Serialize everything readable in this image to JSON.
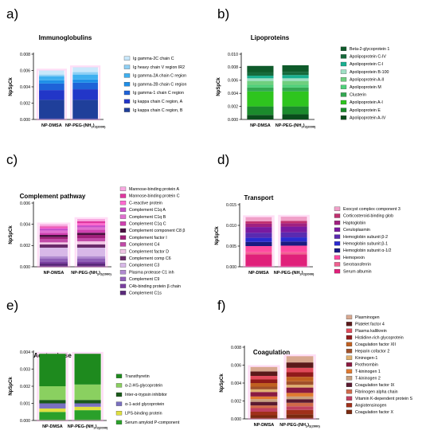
{
  "chart_data": [
    {
      "panel_label": "a)",
      "type": "bar",
      "stacked": true,
      "title": "Immunoglobulins",
      "ylabel": "NpSpCk",
      "ylim": [
        0,
        0.008
      ],
      "yticks": [
        "0.000",
        "0.002",
        "0.004",
        "0.006",
        "0.008"
      ],
      "categories": [
        "NP-DMSA",
        "NP-PEG-(NH2)2(2000)"
      ],
      "category_display": [
        {
          "main": "NP-DMSA",
          "sub": ""
        },
        {
          "main": "NP-PEG-(NH",
          "sub": "2",
          "main2": ")",
          "sub2": "2(2000)"
        }
      ],
      "legend_order": "top-to-bottom",
      "series": [
        {
          "name": "Ig kappa chain C region, B",
          "color": "#1f3f9a",
          "values": [
            0.0024,
            0.0024
          ]
        },
        {
          "name": "Ig kappa chain C region, A",
          "color": "#2236c8",
          "values": [
            0.0012,
            0.0013
          ]
        },
        {
          "name": "Ig gamma-1 chain C region",
          "color": "#1e62d8",
          "values": [
            0.0008,
            0.0008
          ]
        },
        {
          "name": "Ig gamma-2B chain C region",
          "color": "#1f8fe8",
          "values": [
            0.0004,
            0.0004
          ]
        },
        {
          "name": "Ig gamma-2A chain C region",
          "color": "#3fb0f0",
          "values": [
            0.0005,
            0.0006
          ]
        },
        {
          "name": "Ig heavy chain V region IR2",
          "color": "#8fd0f5",
          "values": [
            0.0002,
            0.0003
          ]
        },
        {
          "name": "Ig gamma-2C chain C",
          "color": "#c9e8fb",
          "values": [
            0.0005,
            0.0006
          ]
        }
      ]
    },
    {
      "panel_label": "b)",
      "type": "bar",
      "stacked": true,
      "title": "Lipoproteins",
      "ylabel": "NpSpCk",
      "ylim": [
        0,
        0.01
      ],
      "yticks": [
        "0.000",
        "0.002",
        "0.004",
        "0.006",
        "0.008",
        "0.010"
      ],
      "categories": [
        "NP-DMSA",
        "NP-PEG-(NH2)2(2000)"
      ],
      "category_display": [
        {
          "main": "NP-DMSA",
          "sub": ""
        },
        {
          "main": "NP-PEG-(NH",
          "sub": "2",
          "main2": ")",
          "sub2": "2(2000)"
        }
      ],
      "series": [
        {
          "name": "Apolipoprotein A-IV",
          "color": "#0a4d1c",
          "values": [
            0.0007,
            0.0008
          ]
        },
        {
          "name": "Apolipoprotein E",
          "color": "#1b8a2c",
          "values": [
            0.0013,
            0.0012
          ]
        },
        {
          "name": "Apolipoprotein A-I",
          "color": "#2ec51e",
          "values": [
            0.0023,
            0.0023
          ]
        },
        {
          "name": "Clusterin",
          "color": "#33a852",
          "values": [
            0.0006,
            0.0006
          ]
        },
        {
          "name": "Apolipoprotein M",
          "color": "#4fd07a",
          "values": [
            0.0004,
            0.0004
          ]
        },
        {
          "name": "Apolipoprotein A-II",
          "color": "#6fcf7f",
          "values": [
            0.0006,
            0.0006
          ]
        },
        {
          "name": "Apolipoprotein B-100",
          "color": "#9fe0c4",
          "values": [
            0.0004,
            0.0004
          ]
        },
        {
          "name": "Apolipoprotein C-I",
          "color": "#18b090",
          "values": [
            0.0004,
            0.0005
          ]
        },
        {
          "name": "Apolipoprotein C-IV",
          "color": "#166a3c",
          "values": [
            0.0005,
            0.0005
          ]
        },
        {
          "name": "Beta-2-glycoprotein 1",
          "color": "#0e5a2a",
          "values": [
            0.001,
            0.001
          ]
        }
      ]
    },
    {
      "panel_label": "c)",
      "type": "bar",
      "stacked": true,
      "title": "Complement pathway",
      "ylabel": "NpSpCk",
      "ylim": [
        0,
        0.006
      ],
      "yticks": [
        "0.000",
        "0.002",
        "0.004",
        "0.006"
      ],
      "categories": [
        "NP-DMSA",
        "NP-PEG-(NH2)2(2000)"
      ],
      "category_display": [
        {
          "main": "NP-DMSA",
          "sub": ""
        },
        {
          "main": "NP-PEG-(NH",
          "sub": "2",
          "main2": ")",
          "sub2": "2(2000)"
        }
      ],
      "series": [
        {
          "name": "Complement C1s",
          "color": "#5a2a7a",
          "values": [
            0.0003,
            0.0003
          ]
        },
        {
          "name": "C4b-binding protein  β chain",
          "color": "#7a3fa0",
          "values": [
            0.0002,
            0.0002
          ]
        },
        {
          "name": "Complement C9",
          "color": "#9060b8",
          "values": [
            0.0003,
            0.0003
          ]
        },
        {
          "name": "Plasma protease C1 inh",
          "color": "#b08ad0",
          "values": [
            0.0002,
            0.0002
          ]
        },
        {
          "name": "Complement C3",
          "color": "#d8b8e8",
          "values": [
            0.0008,
            0.0008
          ]
        },
        {
          "name": "Complement comp C6",
          "color": "#6a2a6a",
          "values": [
            0.0003,
            0.0003
          ]
        },
        {
          "name": "Complement factor D",
          "color": "#f0c4e4",
          "values": [
            0.0002,
            0.0003
          ]
        },
        {
          "name": "Complement C4",
          "color": "#c24aa8",
          "values": [
            0.0003,
            0.0003
          ]
        },
        {
          "name": "Complement factor I",
          "color": "#a0207a",
          "values": [
            0.0002,
            0.0003
          ]
        },
        {
          "name": "Complement component C8  β",
          "color": "#4a1040",
          "values": [
            0.0002,
            0.0002
          ]
        },
        {
          "name": "Complement C1q C",
          "color": "#d040b0",
          "values": [
            0.0002,
            0.0003
          ]
        },
        {
          "name": "Complement C1q B",
          "color": "#e070d0",
          "values": [
            0.0002,
            0.0002
          ]
        },
        {
          "name": "Complement C1q A",
          "color": "#c850c8",
          "values": [
            0.0002,
            0.0002
          ]
        },
        {
          "name": "C-reactive protein",
          "color": "#ff6ad0",
          "values": [
            0.0001,
            0.0002
          ]
        },
        {
          "name": "Mannose-binding protein C",
          "color": "#e038a0",
          "values": [
            0.0001,
            0.0002
          ]
        },
        {
          "name": "Mannose-binding protein A",
          "color": "#f8a8e0",
          "values": [
            0.0002,
            0.0002
          ]
        }
      ]
    },
    {
      "panel_label": "d)",
      "type": "bar",
      "stacked": true,
      "title": "Transport",
      "ylabel": "NpSpCk",
      "ylim": [
        0,
        0.015
      ],
      "yticks": [
        "0.000",
        "0.005",
        "0.010",
        "0.015"
      ],
      "categories": [
        "NP-DMSA",
        "NP-PEG-(NH2)2(2000)"
      ],
      "category_display": [
        {
          "main": "NP-DMSA",
          "sub": ""
        },
        {
          "main": "NP-PEG-(NH",
          "sub": "2",
          "main2": ")",
          "sub2": "2(2000)"
        }
      ],
      "series": [
        {
          "name": "Serum albumin",
          "color": "#e0207a",
          "values": [
            0.003,
            0.003
          ]
        },
        {
          "name": "Serotransferrin",
          "color": "#f06090",
          "values": [
            0.0005,
            0.0005
          ]
        },
        {
          "name": "Hemopexin",
          "color": "#ff4aa0",
          "values": [
            0.0015,
            0.0016
          ]
        },
        {
          "name": "Hemoglobin subunit  α-1/2",
          "color": "#1a1a80",
          "values": [
            0.001,
            0.001
          ]
        },
        {
          "name": "Hemoglobin subunit  β-1",
          "color": "#2a2ad0",
          "values": [
            0.001,
            0.001
          ]
        },
        {
          "name": "Hemoglobin subunit  β-2",
          "color": "#5a2ab0",
          "values": [
            0.0012,
            0.0012
          ]
        },
        {
          "name": "Ceruloplasmin",
          "color": "#7a1aa0",
          "values": [
            0.0014,
            0.0014
          ]
        },
        {
          "name": "Haptoglobin",
          "color": "#a02080",
          "values": [
            0.0008,
            0.0008
          ]
        },
        {
          "name": "Corticosteroid-binding glob",
          "color": "#c03070",
          "values": [
            0.0006,
            0.0006
          ]
        },
        {
          "name": "Exocyst complex component 3",
          "color": "#f0a0c8",
          "values": [
            0.001,
            0.001
          ]
        }
      ]
    },
    {
      "panel_label": "e)",
      "type": "bar",
      "stacked": true,
      "title": "Acute phase",
      "ylabel": "NpSpCk",
      "ylim": [
        0,
        0.004
      ],
      "yticks": [
        "0.000",
        "0.001",
        "0.002",
        "0.003",
        "0.004"
      ],
      "categories": [
        "NP-DMSA",
        "NP-PEG-(NH2)2(2000)"
      ],
      "category_display": [
        {
          "main": "NP-DMSA",
          "sub": ""
        },
        {
          "main": "NP-PEG-(NH",
          "sub": "2",
          "main2": ")",
          "sub2": "2(2000)"
        }
      ],
      "series": [
        {
          "name": "Serum amyloid P-component",
          "color": "#2aa02a",
          "values": [
            0.0005,
            0.0006
          ]
        },
        {
          "name": "LPS-binding protein",
          "color": "#e0e040",
          "values": [
            0.0002,
            0.0002
          ]
        },
        {
          "name": "α-1-acid glycoprotein",
          "color": "#7a70c0",
          "values": [
            0.0003,
            0.0002
          ]
        },
        {
          "name": "Inter-α-trypsin inhibitor",
          "color": "#1a5a1a",
          "values": [
            0.0002,
            0.0002
          ]
        },
        {
          "name": "α-2-HS-glycoprotein",
          "color": "#8ad060",
          "values": [
            0.0008,
            0.0009
          ]
        },
        {
          "name": "Transthyretin",
          "color": "#1e8a1e",
          "values": [
            0.0019,
            0.0018
          ]
        }
      ]
    },
    {
      "panel_label": "f)",
      "type": "bar",
      "stacked": true,
      "title": "Coagulation",
      "ylabel": "NpSpCk",
      "ylim": [
        0,
        0.008
      ],
      "yticks": [
        "0.000",
        "0.002",
        "0.004",
        "0.006",
        "0.008"
      ],
      "categories": [
        "NP-DMSA",
        "NP-PEG-(NH2)2(2000)"
      ],
      "category_display": [
        {
          "main": "NP-DMSA",
          "sub": ""
        },
        {
          "main": "NP-PEG-(NH",
          "sub": "2",
          "main2": ")",
          "sub2": "2(2000)"
        }
      ],
      "series": [
        {
          "name": "Coagulation factor X",
          "color": "#7a2a10",
          "values": [
            0.0004,
            0.0005
          ]
        },
        {
          "name": "Angiotensinogen",
          "color": "#a0301a",
          "values": [
            0.0004,
            0.0005
          ]
        },
        {
          "name": "Vitamin K-dependent protein S",
          "color": "#c04060",
          "values": [
            0.0004,
            0.0004
          ]
        },
        {
          "name": "Fibrinogen alpha chain",
          "color": "#d06a4a",
          "values": [
            0.0003,
            0.0004
          ]
        },
        {
          "name": "Coagulation factor IX",
          "color": "#5a1a30",
          "values": [
            0.0004,
            0.0004
          ]
        },
        {
          "name": "T-kininogen 2",
          "color": "#c8a080",
          "values": [
            0.0003,
            0.0003
          ]
        },
        {
          "name": "T-kininogen 1",
          "color": "#e07a30",
          "values": [
            0.0003,
            0.0004
          ]
        },
        {
          "name": "Prothrombin",
          "color": "#8a1a40",
          "values": [
            0.0005,
            0.0006
          ]
        },
        {
          "name": "Kininogen-1",
          "color": "#e0b070",
          "values": [
            0.0003,
            0.0003
          ]
        },
        {
          "name": "Heparin cofactor 2",
          "color": "#a0502a",
          "values": [
            0.0003,
            0.0004
          ]
        },
        {
          "name": "Coagulation factor XII",
          "color": "#c06020",
          "values": [
            0.0004,
            0.0005
          ]
        },
        {
          "name": "Histidine-rich glycoprotein",
          "color": "#901a1a",
          "values": [
            0.0004,
            0.0005
          ]
        },
        {
          "name": "Plasma kallikrein",
          "color": "#e04a5a",
          "values": [
            0.0004,
            0.0005
          ]
        },
        {
          "name": "Platelet factor 4",
          "color": "#5a1a1a",
          "values": [
            0.0005,
            0.0006
          ]
        },
        {
          "name": "Plasminogen",
          "color": "#d8a890",
          "values": [
            0.0005,
            0.0007
          ]
        }
      ]
    }
  ]
}
